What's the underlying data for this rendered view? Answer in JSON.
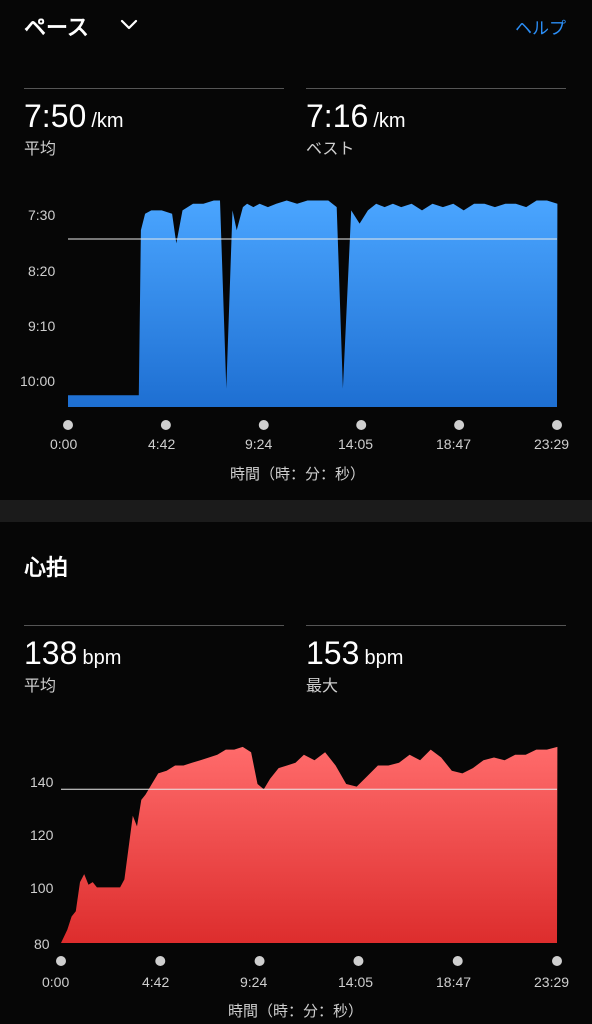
{
  "pace": {
    "title": "ペース",
    "help_label": "ヘルプ",
    "avg_value": "7:50",
    "avg_unit": "/km",
    "avg_label": "平均",
    "best_value": "7:16",
    "best_unit": "/km",
    "best_label": "ベスト",
    "y_ticks": [
      "7:30",
      "8:20",
      "9:10",
      "10:00"
    ],
    "x_ticks": [
      "0:00",
      "4:42",
      "9:24",
      "14:05",
      "18:47",
      "23:29"
    ],
    "x_axis_title": "時間（時：分：秒）",
    "colors": {
      "fill_top": "#4aa5ff",
      "fill_bottom": "#1e6fd2"
    }
  },
  "heart": {
    "title": "心拍",
    "avg_value": "138",
    "avg_unit": "bpm",
    "avg_label": "平均",
    "max_value": "153",
    "max_unit": "bpm",
    "max_label": "最大",
    "y_ticks": [
      "140",
      "120",
      "100",
      "80"
    ],
    "x_ticks": [
      "0:00",
      "4:42",
      "9:24",
      "14:05",
      "18:47",
      "23:29"
    ],
    "x_axis_title": "時間（時：分：秒）",
    "colors": {
      "fill_top": "#ff6b6b",
      "fill_bottom": "#dd2d2d"
    }
  },
  "chart_data": [
    {
      "type": "area",
      "x_unit": "minutes",
      "x_ticks": [
        "0:00",
        "4:42",
        "9:24",
        "14:05",
        "18:47",
        "23:29"
      ],
      "y_ticks": [
        "7:30",
        "8:20",
        "9:10",
        "10:00"
      ],
      "y_inverted": true,
      "reference_line": "7:50",
      "x": [
        0,
        3.4,
        3.5,
        3.7,
        4.0,
        4.5,
        5.0,
        5.2,
        5.5,
        6.0,
        6.5,
        7.0,
        7.3,
        7.6,
        7.9,
        8.1,
        8.4,
        8.6,
        8.9,
        9.2,
        9.6,
        10.0,
        10.5,
        11.0,
        11.5,
        12.0,
        12.5,
        12.9,
        13.2,
        13.6,
        14.0,
        14.4,
        14.8,
        15.2,
        15.6,
        16.0,
        16.5,
        17.0,
        17.5,
        18.0,
        18.5,
        19.0,
        19.5,
        20.0,
        20.5,
        21.0,
        21.5,
        22.0,
        22.5,
        23.0,
        23.5
      ],
      "values": [
        10.2,
        10.2,
        7.7,
        7.45,
        7.4,
        7.4,
        7.45,
        7.9,
        7.4,
        7.3,
        7.3,
        7.25,
        7.25,
        10.1,
        7.4,
        7.7,
        7.35,
        7.3,
        7.35,
        7.3,
        7.35,
        7.3,
        7.25,
        7.3,
        7.25,
        7.25,
        7.25,
        7.35,
        10.1,
        7.4,
        7.6,
        7.4,
        7.3,
        7.35,
        7.3,
        7.35,
        7.3,
        7.4,
        7.3,
        7.35,
        7.3,
        7.4,
        7.3,
        7.3,
        7.35,
        7.3,
        7.3,
        7.35,
        7.25,
        7.25,
        7.3
      ]
    },
    {
      "type": "area",
      "x_unit": "minutes",
      "x_ticks": [
        "0:00",
        "4:42",
        "9:24",
        "14:05",
        "18:47",
        "23:29"
      ],
      "y_ticks": [
        "140",
        "120",
        "100",
        "80"
      ],
      "reference_line": 138,
      "x": [
        0,
        0.3,
        0.5,
        0.7,
        0.9,
        1.1,
        1.3,
        1.5,
        1.7,
        1.9,
        2.3,
        2.8,
        3.0,
        3.4,
        3.6,
        3.8,
        4.0,
        4.3,
        4.6,
        5.0,
        5.4,
        5.8,
        6.2,
        6.6,
        7.0,
        7.4,
        7.8,
        8.2,
        8.6,
        9.0,
        9.3,
        9.6,
        9.9,
        10.3,
        10.7,
        11.1,
        11.5,
        12.0,
        12.5,
        13.0,
        13.5,
        14.0,
        14.5,
        15.0,
        15.5,
        16.0,
        16.5,
        17.0,
        17.5,
        18.0,
        18.5,
        19.0,
        19.5,
        20.0,
        20.5,
        21.0,
        21.5,
        22.0,
        22.5,
        23.0,
        23.5
      ],
      "values": [
        80,
        85,
        90,
        92,
        103,
        106,
        102,
        103,
        101,
        101,
        101,
        101,
        104,
        128,
        124,
        134,
        136,
        140,
        144,
        145,
        147,
        147,
        148,
        149,
        150,
        151,
        153,
        153,
        154,
        152,
        140,
        138,
        142,
        146,
        147,
        148,
        151,
        149,
        152,
        147,
        140,
        139,
        143,
        147,
        147,
        148,
        151,
        149,
        153,
        150,
        145,
        144,
        146,
        149,
        150,
        149,
        151,
        151,
        153,
        153,
        154
      ]
    }
  ]
}
